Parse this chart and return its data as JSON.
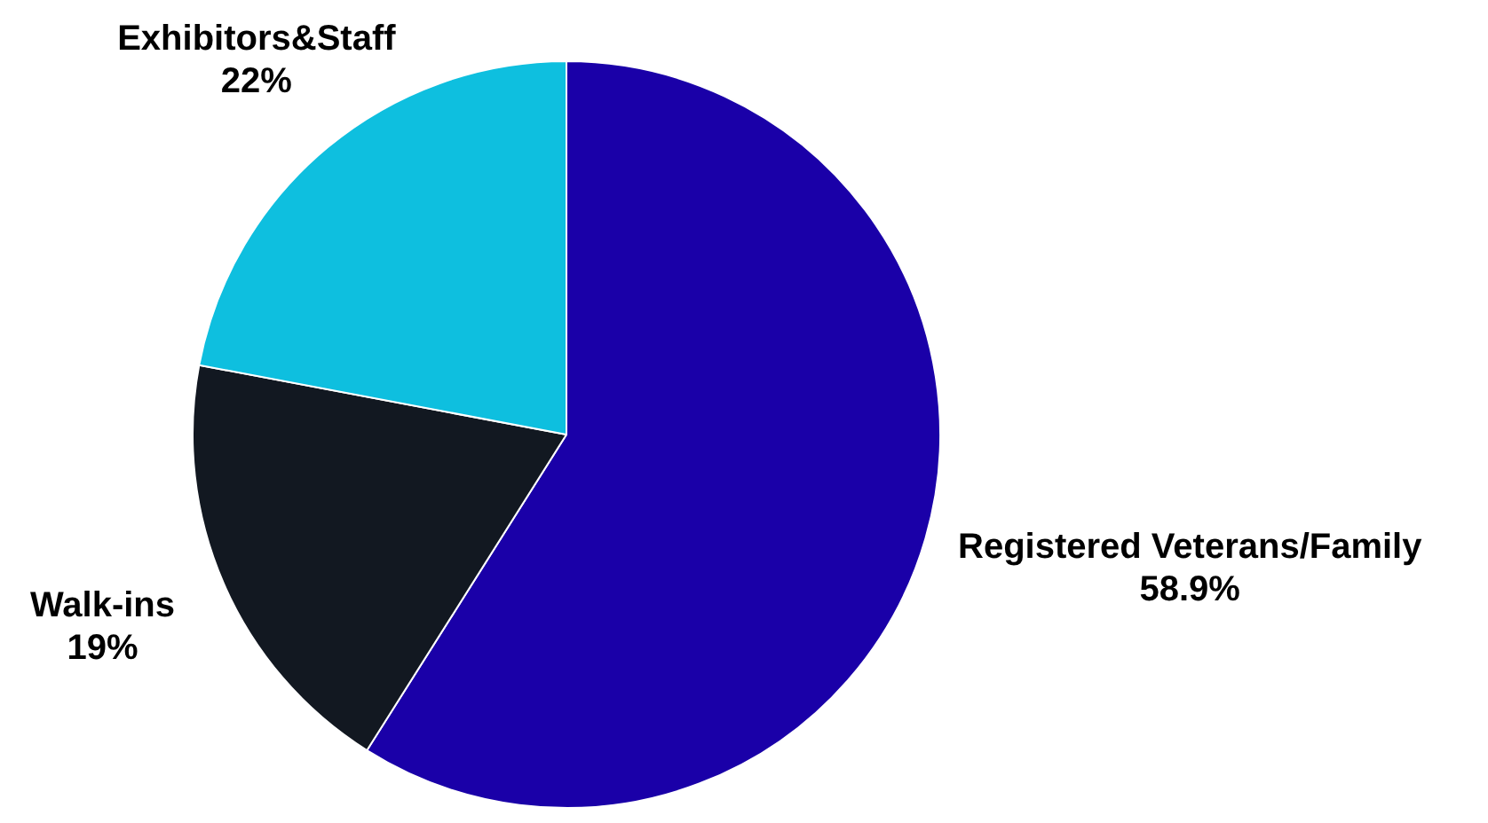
{
  "chart_data": {
    "type": "pie",
    "categories": [
      "Registered Veterans/Family",
      "Walk-ins",
      "Exhibitors&Staff"
    ],
    "values": [
      58.9,
      19,
      22
    ],
    "colors": [
      "#1a00a8",
      "#121821",
      "#0ebfdf"
    ],
    "value_labels": [
      "58.9%",
      "19%",
      "22%"
    ]
  }
}
